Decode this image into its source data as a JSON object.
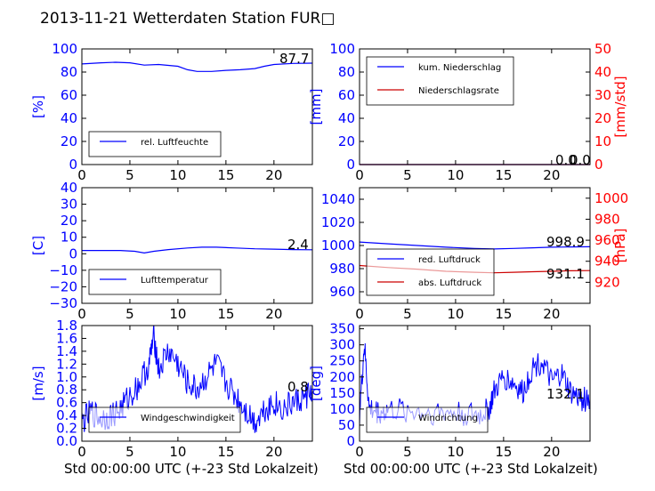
{
  "title": "2013-11-21 Wetterdaten Station FUR□",
  "colors": {
    "left_axis": "#0000ff",
    "right_axis": "#ff0000",
    "series_red": "#cc0000",
    "light": "#8888ff"
  },
  "chart_data": [
    {
      "id": "p1",
      "type": "line",
      "ylabel": "[%]",
      "xlim": [
        0,
        24
      ],
      "ylim": [
        0,
        100
      ],
      "xticks": [
        "0",
        "5",
        "10",
        "15",
        "20"
      ],
      "yticks": [
        "0",
        "20",
        "40",
        "60",
        "80",
        "100"
      ],
      "latest_value": "87.7",
      "series": [
        {
          "name": "rel. Luftfeuchte",
          "color": "#0000ff",
          "x": [
            0,
            2,
            3.5,
            5,
            6.5,
            8,
            10,
            11,
            12,
            13.5,
            15,
            16.5,
            18,
            19,
            20,
            22,
            24
          ],
          "y": [
            87,
            88,
            88.5,
            88,
            86,
            86.5,
            85,
            82,
            80.5,
            80.5,
            81.5,
            82,
            83,
            85,
            86.5,
            87.5,
            87.7
          ]
        }
      ]
    },
    {
      "id": "p2",
      "type": "line",
      "ylabel": "[mm]",
      "ylabel_right": "[mm/std]",
      "xlim": [
        0,
        24
      ],
      "ylim": [
        0,
        100
      ],
      "ylim_right": [
        0,
        50
      ],
      "xticks": [
        "0",
        "5",
        "10",
        "15",
        "20"
      ],
      "yticks": [
        "0",
        "20",
        "40",
        "60",
        "80",
        "100"
      ],
      "yticks_right": [
        "0",
        "10",
        "20",
        "30",
        "40",
        "50"
      ],
      "latest_value": "0.0",
      "latest_value_2": "0.0",
      "series": [
        {
          "name": "kum. Niederschlag",
          "color": "#0000ff",
          "x": [
            0,
            24
          ],
          "y": [
            0,
            0
          ]
        },
        {
          "name": "Niederschlagsrate",
          "color": "#cc0000",
          "x": [
            0,
            24
          ],
          "y": [
            0,
            0
          ]
        }
      ]
    },
    {
      "id": "p3",
      "type": "line",
      "ylabel": "[C]",
      "xlim": [
        0,
        24
      ],
      "ylim": [
        -30,
        40
      ],
      "xticks": [
        "0",
        "5",
        "10",
        "15",
        "20"
      ],
      "yticks": [
        "−30",
        "−20",
        "−10",
        "0",
        "10",
        "20",
        "30",
        "40"
      ],
      "latest_value": "2.4",
      "series": [
        {
          "name": "Lufttemperatur",
          "color": "#0000ff",
          "x": [
            0,
            2,
            4,
            5.5,
            6.5,
            7.5,
            9,
            11,
            12.5,
            14,
            16,
            18,
            20,
            22,
            24
          ],
          "y": [
            2,
            2,
            2,
            1.5,
            0.5,
            1.5,
            2.5,
            3.5,
            4,
            4,
            3.5,
            3,
            2.8,
            2.5,
            2.4
          ]
        }
      ]
    },
    {
      "id": "p4",
      "type": "line",
      "ylabel_right": "[hPa]",
      "xlim": [
        0,
        24
      ],
      "ylim": [
        950,
        1050
      ],
      "ylim_right": [
        900,
        1010
      ],
      "xticks": [
        "0",
        "5",
        "10",
        "15",
        "20"
      ],
      "yticks": [
        "960",
        "980",
        "1000",
        "1020",
        "1040"
      ],
      "yticks_right": [
        "920",
        "940",
        "960",
        "980",
        "1000"
      ],
      "latest_value": "998.9",
      "latest_value_2": "931.1",
      "series": [
        {
          "name": "red. Luftdruck",
          "color": "#0000ff",
          "x": [
            0,
            3,
            6,
            9,
            12,
            14,
            16,
            18,
            20,
            22,
            24
          ],
          "y": [
            1003,
            1001.5,
            1000,
            998.5,
            997.5,
            997,
            997.5,
            998,
            998.5,
            998.8,
            998.9
          ]
        },
        {
          "name": "abs. Luftdruck",
          "color": "#cc0000",
          "x": [
            0,
            3,
            6,
            9,
            12,
            14,
            16,
            18,
            20,
            22,
            24
          ],
          "y": [
            936,
            934,
            932.5,
            930.5,
            929.5,
            929,
            929.5,
            930,
            930.5,
            931,
            931.1
          ]
        }
      ]
    },
    {
      "id": "p5",
      "type": "line",
      "ylabel": "[m/s]",
      "xlim": [
        0,
        24
      ],
      "ylim": [
        0,
        1.8
      ],
      "xticks": [
        "0",
        "5",
        "10",
        "15",
        "20"
      ],
      "yticks": [
        "0.0",
        "0.2",
        "0.4",
        "0.6",
        "0.8",
        "1.0",
        "1.2",
        "1.4",
        "1.6",
        "1.8"
      ],
      "latest_value": "0.8",
      "series": [
        {
          "name": "Windgeschwindigkeit",
          "color": "#0000ff",
          "x": [
            0,
            1,
            2,
            3,
            4,
            5,
            6,
            7,
            7.5,
            8,
            9,
            10,
            11,
            12,
            13,
            14,
            15,
            16,
            17,
            18,
            19,
            20,
            21,
            22,
            23,
            24
          ],
          "y": [
            0.3,
            0.45,
            0.35,
            0.4,
            0.5,
            0.7,
            0.9,
            1.2,
            1.65,
            1.1,
            1.4,
            1.2,
            0.9,
            0.8,
            1.0,
            1.2,
            0.9,
            0.7,
            0.5,
            0.3,
            0.5,
            0.6,
            0.5,
            0.6,
            0.65,
            0.8
          ]
        }
      ]
    },
    {
      "id": "p6",
      "type": "line",
      "ylabel": "[deg]",
      "xlim": [
        0,
        24
      ],
      "ylim": [
        0,
        360
      ],
      "xticks": [
        "0",
        "5",
        "10",
        "15",
        "20"
      ],
      "yticks": [
        "0",
        "50",
        "100",
        "150",
        "200",
        "250",
        "300",
        "350"
      ],
      "latest_value": "132.1",
      "series": [
        {
          "name": "Windrichtung",
          "color": "#0000ff",
          "x": [
            0,
            0.5,
            1,
            2,
            3,
            5,
            7,
            9,
            11,
            12.5,
            13.5,
            14,
            15,
            16,
            17,
            18,
            19,
            20,
            21,
            22,
            23,
            24
          ],
          "y": [
            80,
            300,
            100,
            90,
            95,
            95,
            90,
            90,
            85,
            80,
            100,
            150,
            200,
            180,
            150,
            230,
            250,
            180,
            210,
            150,
            130,
            132
          ]
        }
      ]
    }
  ],
  "xlabel_left": "Std 00:00:00 UTC (+-23 Std Lokalzeit)",
  "xlabel_right": "Std 00:00:00 UTC (+-23 Std Lokalzeit)"
}
